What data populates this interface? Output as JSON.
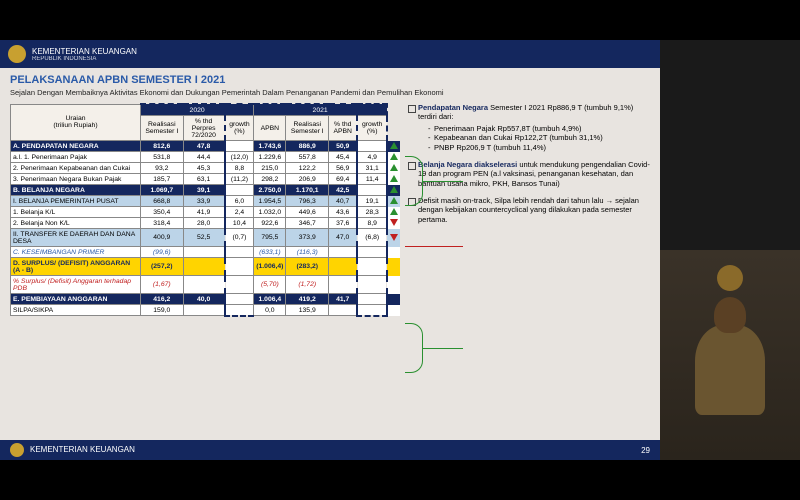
{
  "ministry": "KEMENTERIAN KEUANGAN",
  "ministry_sub": "REPUBLIK INDONESIA",
  "footer_text": "KEMENTERIAN KEUANGAN",
  "page_num": "29",
  "title": "PELAKSANAAN APBN SEMESTER I 2021",
  "subtitle": "Sejalan Dengan Membaiknya Aktivitas Ekonomi dan Dukungan Pemerintah Dalam Penanganan Pandemi dan Pemulihan Ekonomi",
  "table": {
    "uraian": "Uraian",
    "unit": "(triliun Rupiah)",
    "year2020": "2020",
    "year2021": "2021",
    "cols": {
      "real20": "Realisasi Semester I",
      "pct20": "% thd Perpres 72/2020",
      "g20": "growth (%)",
      "apbn": "APBN",
      "real21": "Realisasi Semester I",
      "pct21": "% thd APBN",
      "g21": "growth (%)"
    },
    "rows": [
      {
        "cls": "sec-a",
        "label": "A.  PENDAPATAN NEGARA",
        "r20": "812,6",
        "p20": "47,8",
        "g20": "(9,7)",
        "apbn": "1.743,6",
        "r21": "886,9",
        "p21": "50,9",
        "g21": "9,1",
        "tri": "up"
      },
      {
        "cls": "sub2",
        "label": "a.l. 1. Penerimaan Pajak",
        "r20": "531,8",
        "p20": "44,4",
        "g20": "(12,0)",
        "apbn": "1.229,6",
        "r21": "557,8",
        "p21": "45,4",
        "g21": "4,9",
        "tri": "up"
      },
      {
        "cls": "sub2",
        "label": "     2. Penerimaan Kepabeanan dan Cukai",
        "r20": "93,2",
        "p20": "45,3",
        "g20": "8,8",
        "apbn": "215,0",
        "r21": "122,2",
        "p21": "56,9",
        "g21": "31,1",
        "tri": "up"
      },
      {
        "cls": "sub2",
        "label": "     3. Penerimaan Negara Bukan Pajak",
        "r20": "185,7",
        "p20": "63,1",
        "g20": "(11,2)",
        "apbn": "298,2",
        "r21": "206,9",
        "p21": "69,4",
        "g21": "11,4",
        "tri": "up"
      },
      {
        "cls": "sec-b",
        "label": "B.  BELANJA NEGARA",
        "r20": "1.069,7",
        "p20": "39,1",
        "g20": "3,4",
        "apbn": "2.750,0",
        "r21": "1.170,1",
        "p21": "42,5",
        "g21": "9,4",
        "tri": "up"
      },
      {
        "cls": "sub1",
        "label": "   I. BELANJA PEMERINTAH PUSAT",
        "r20": "668,8",
        "p20": "33,9",
        "g20": "6,0",
        "apbn": "1.954,5",
        "r21": "796,3",
        "p21": "40,7",
        "g21": "19,1",
        "tri": "up"
      },
      {
        "cls": "sub2",
        "label": "      1. Belanja K/L",
        "r20": "350,4",
        "p20": "41,9",
        "g20": "2,4",
        "apbn": "1.032,0",
        "r21": "449,6",
        "p21": "43,6",
        "g21": "28,3",
        "tri": "up"
      },
      {
        "cls": "sub2",
        "label": "      2. Belanja Non K/L",
        "r20": "318,4",
        "p20": "28,0",
        "g20": "10,4",
        "apbn": "922,6",
        "r21": "346,7",
        "p21": "37,6",
        "g21": "8,9",
        "tri": "down"
      },
      {
        "cls": "sub1",
        "label": "   II. TRANSFER KE DAERAH DAN DANA DESA",
        "r20": "400,9",
        "p20": "52,5",
        "g20": "(0,7)",
        "apbn": "795,5",
        "r21": "373,9",
        "p21": "47,0",
        "g21": "(6,8)",
        "tri": "down"
      },
      {
        "cls": "sec-c",
        "label": "C.  KESEIMBANGAN PRIMER",
        "r20": "(99,6)",
        "p20": "",
        "g20": "",
        "apbn": "(633,1)",
        "r21": "(116,3)",
        "p21": "",
        "g21": "",
        "tri": ""
      },
      {
        "cls": "sec-d",
        "label": "D.  SURPLUS/ (DEFISIT) ANGGARAN (A - B)",
        "r20": "(257,2)",
        "p20": "",
        "g20": "",
        "apbn": "(1.006,4)",
        "r21": "(283,2)",
        "p21": "",
        "g21": "",
        "tri": ""
      },
      {
        "cls": "sec-d2",
        "label": "   % Surplus/ (Defisit) Anggaran terhadap PDB",
        "r20": "(1,67)",
        "p20": "",
        "g20": "",
        "apbn": "(5,70)",
        "r21": "(1,72)",
        "p21": "",
        "g21": "",
        "tri": ""
      },
      {
        "cls": "sec-e",
        "label": "E.  PEMBIAYAAN ANGGARAN",
        "r20": "416,2",
        "p20": "40,0",
        "g20": "136,0",
        "apbn": "1.006,4",
        "r21": "419,2",
        "p21": "41,7",
        "g21": "0,7",
        "tri": ""
      },
      {
        "cls": "sub2",
        "label": "   SILPA/SIKPA",
        "r20": "159,0",
        "p20": "",
        "g20": "",
        "apbn": "0,0",
        "r21": "135,9",
        "p21": "",
        "g21": "",
        "tri": ""
      }
    ]
  },
  "notes": {
    "n1_head": "Pendapatan Negara",
    "n1_body": " Semester I 2021 Rp886,9 T (tumbuh 9,1%) terdiri dari:",
    "n1_items": [
      "Penerimaan Pajak Rp557,8T (tumbuh 4,9%)",
      "Kepabeanan dan Cukai Rp122,2T (tumbuh 31,1%)",
      "PNBP Rp206,9 T (tumbuh 11,4%)"
    ],
    "n2_head": "Belanja Negara diakselerasi",
    "n2_body": " untuk mendukung pengendalian Covid-19 dan program PEN (a.l vaksinasi, penanganan kesehatan, dan bantuan usaha mikro, PKH, Bansos Tunai)",
    "n3_body": "Defisit masih on-track, Silpa lebih rendah dari tahun lalu → sejalan dengan kebijakan countercyclical yang dilakukan pada semester pertama."
  }
}
